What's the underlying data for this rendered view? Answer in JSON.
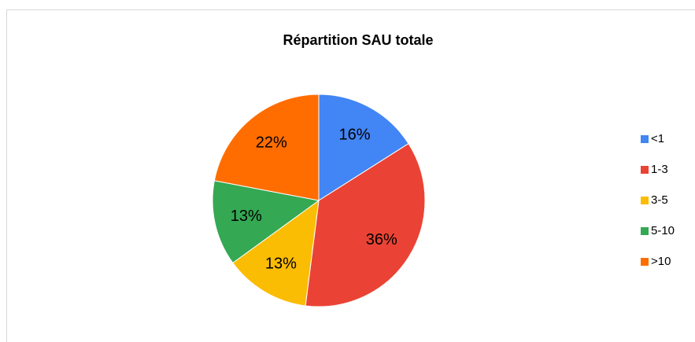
{
  "chart_data": {
    "type": "pie",
    "title": "Répartition SAU totale",
    "categories": [
      "<1",
      "1-3",
      "3-5",
      "5-10",
      ">10"
    ],
    "values": [
      16,
      36,
      13,
      13,
      22
    ],
    "value_labels": [
      "16%",
      "36%",
      "13%",
      "13%",
      "22%"
    ],
    "colors": [
      "#4285f4",
      "#ea4335",
      "#fbbc04",
      "#34a853",
      "#ff6d01"
    ],
    "legend": "right"
  }
}
